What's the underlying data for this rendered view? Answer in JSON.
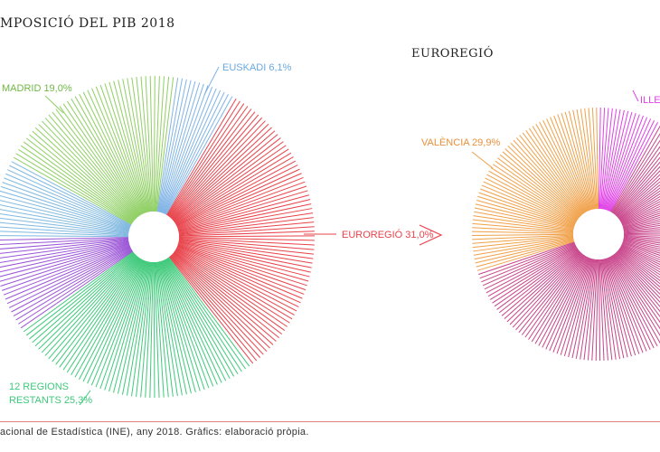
{
  "title": "MPOSICIÓ DEL PIB 2018",
  "source": "acional de Estadística (INE), any 2018. Gràfics: elaboració pròpia.",
  "chart_data": [
    {
      "type": "pie",
      "title": "",
      "style": "radial-lines",
      "slices": [
        {
          "name": "EUROREGIÓ",
          "label": "EUROREGIÓ 31,0%",
          "value": 31.0,
          "color": "#e8434b"
        },
        {
          "name": "12 REGIONS RESTANTS",
          "label": "12 REGIONS RESTANTS 25,3%",
          "label_lines": [
            "12 REGIONS",
            "RESTANTS 25,3%"
          ],
          "value": 25.3,
          "color": "#3ec97a"
        },
        {
          "name": "(unlabeled, violet)",
          "label": "",
          "value": 9.6,
          "color": "#9b55d6"
        },
        {
          "name": "(unlabeled, light blue)",
          "label": "",
          "value": 8.0,
          "color": "#7fb8e0"
        },
        {
          "name": "MADRID",
          "label": "MADRID 19,0%",
          "value": 19.0,
          "color": "#8fcf63"
        },
        {
          "name": "EUSKADI",
          "label": "EUSKADI 6,1%",
          "value": 6.1,
          "color": "#7fb3e6"
        }
      ]
    },
    {
      "type": "pie",
      "title": "EUROREGIÓ",
      "style": "radial-lines",
      "slices": [
        {
          "name": "ILLES",
          "label": "ILLE",
          "value": 8.0,
          "color": "#e040e6"
        },
        {
          "name": "(unlabeled, magenta)",
          "label": "",
          "value": 62.1,
          "color": "#c8448a"
        },
        {
          "name": "VALÈNCIA",
          "label": "VALÈNCIA 29,9%",
          "value": 29.9,
          "color": "#f0a048"
        }
      ]
    }
  ],
  "arrow": {
    "color": "#e8434b"
  },
  "footer": {
    "rule_color": "#e08080"
  }
}
